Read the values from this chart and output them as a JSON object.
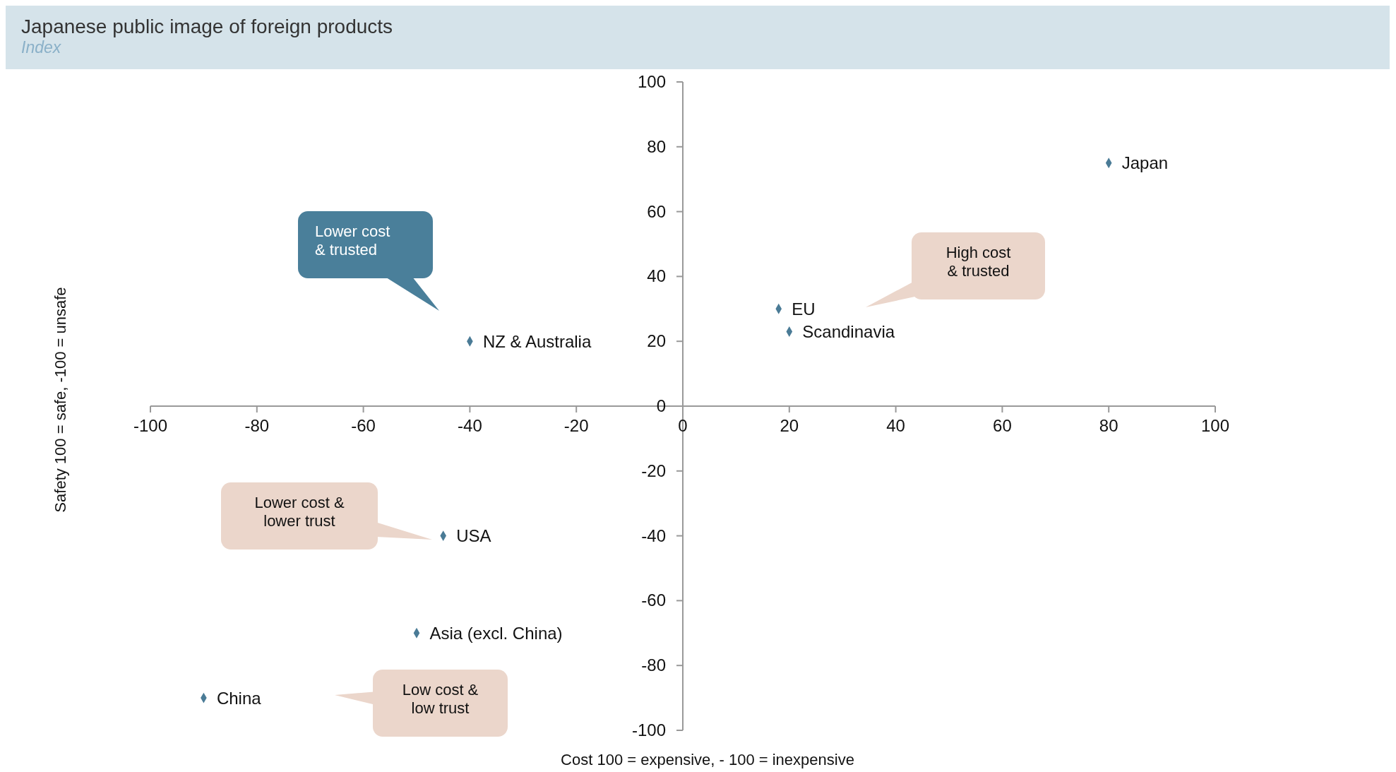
{
  "chart_data": {
    "type": "scatter",
    "title": "Japanese public image of foreign products",
    "subtitle": "Index",
    "xlabel": "Cost 100 = expensive, - 100 = inexpensive",
    "ylabel": "Safety 100 = safe, -100 = unsafe",
    "x": [
      80,
      18,
      20,
      -40,
      -45,
      -50,
      -90
    ],
    "values": [
      75,
      30,
      23,
      20,
      -40,
      -70,
      -90
    ],
    "value_labels": [
      "Japan",
      "EU",
      "Scandinavia",
      "NZ & Australia",
      "USA",
      "Asia (excl. China)",
      "China"
    ],
    "color": "#4a7b96",
    "marker": "diamond",
    "xlim": [
      -100,
      100
    ],
    "ylim": [
      -100,
      100
    ],
    "xticks": [
      -100,
      -80,
      -60,
      -40,
      -20,
      0,
      20,
      40,
      60,
      80,
      100
    ],
    "yticks": [
      -100,
      -80,
      -60,
      -40,
      -20,
      0,
      20,
      40,
      60,
      80,
      100
    ],
    "annotations": [
      "Lower cost\n& trusted",
      "High cost\n& trusted",
      "Lower cost &\nlower trust",
      "Low cost &\nlow trust"
    ]
  }
}
